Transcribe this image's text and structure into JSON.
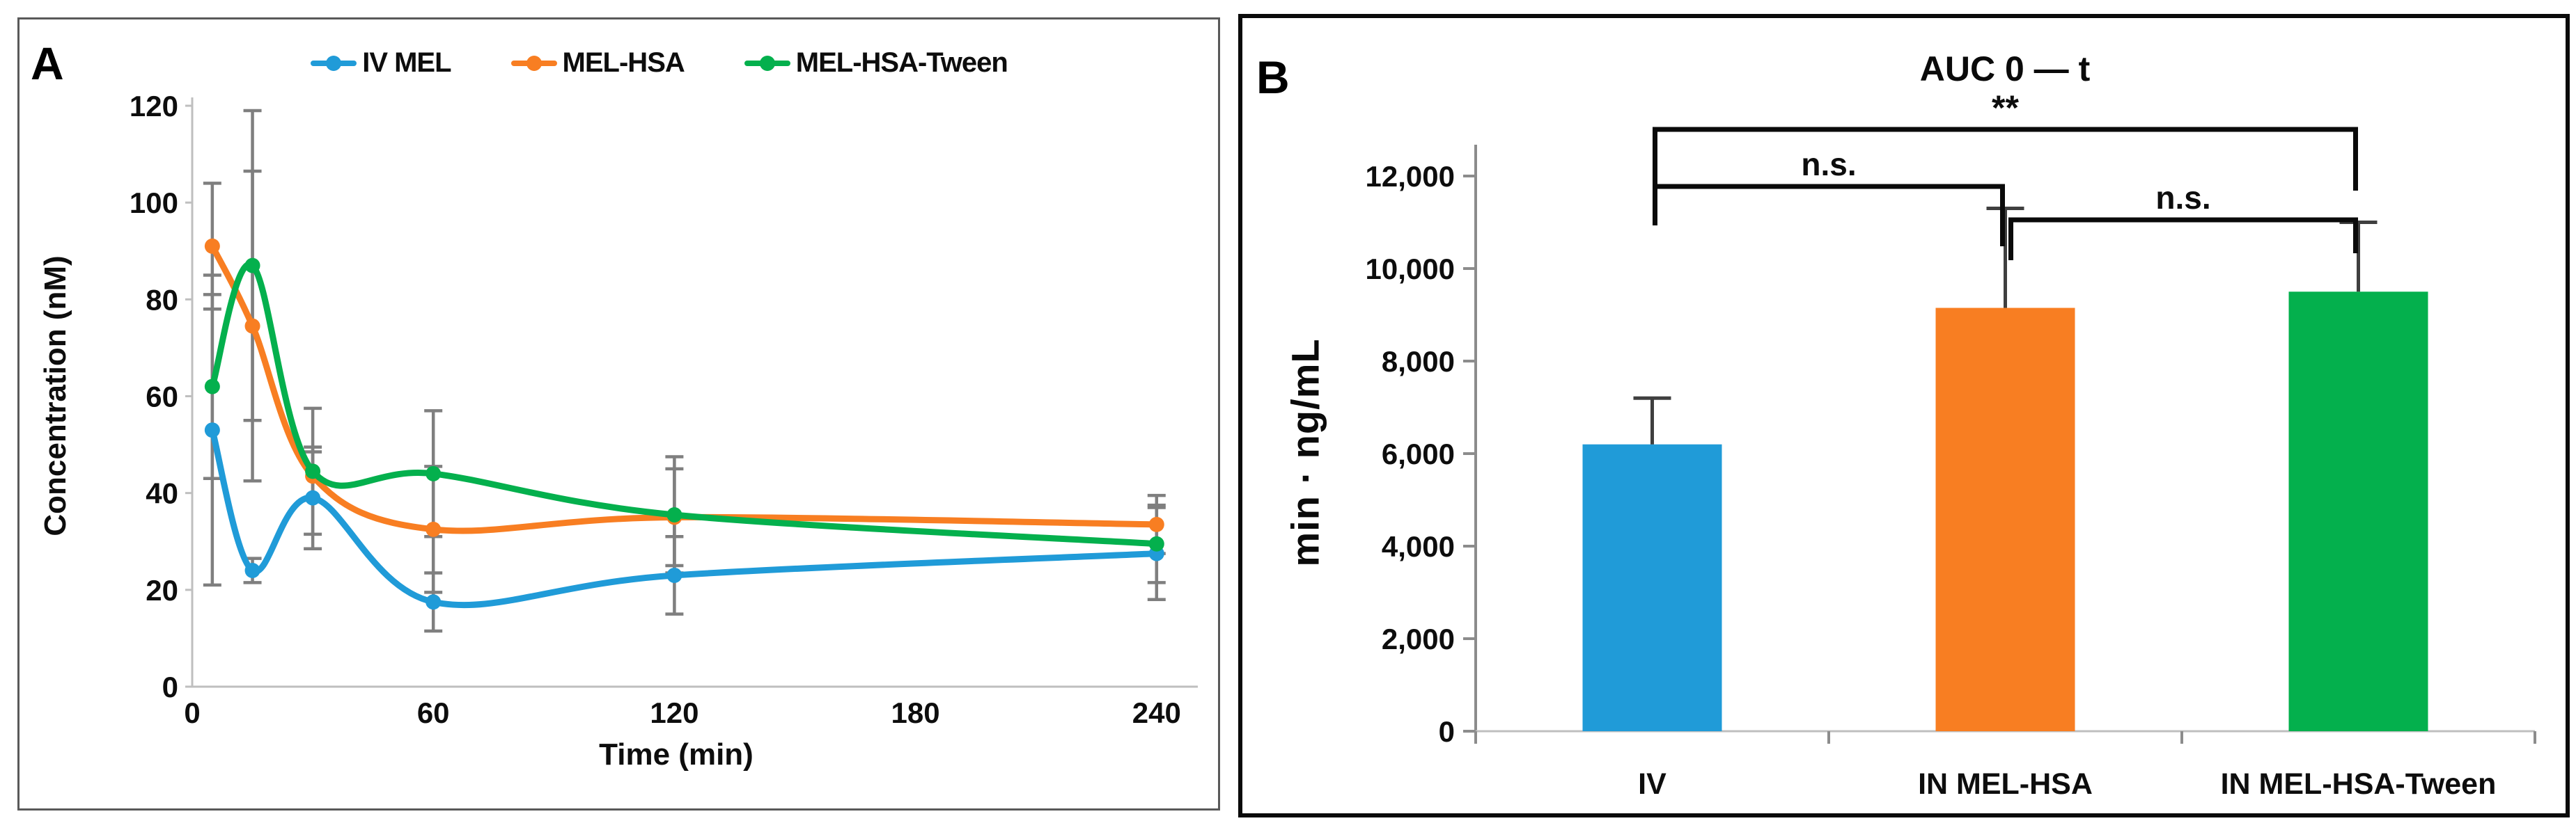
{
  "panels": {
    "a": {
      "letter": "A"
    },
    "b": {
      "letter": "B"
    }
  },
  "colors": {
    "blue": "#209BD8",
    "orange": "#F87E22",
    "green": "#04B04D",
    "error_gray_a": "#7F7F7F",
    "error_gray_b": "#3F3F3F",
    "axis_gray": "#BFBFBF",
    "axis_gray_dark": "#8C8C8C",
    "bracket_black": "#0A0A0A",
    "text_black": "#0D0D0D"
  },
  "chart_data": [
    {
      "type": "line",
      "panel": "A",
      "xlabel": "Time (min)",
      "ylabel": "Concentration (nM)",
      "x_ticks": [
        0,
        60,
        120,
        180,
        240
      ],
      "y_ticks": [
        0,
        20,
        40,
        60,
        80,
        100,
        120
      ],
      "ylim": [
        0,
        120
      ],
      "xlim": [
        0,
        250
      ],
      "x": [
        5,
        15,
        30,
        60,
        120,
        240
      ],
      "legend_position": "top-center",
      "grid": false,
      "series": [
        {
          "name": "IV MEL",
          "color": "#209BD8",
          "values": [
            53,
            24,
            39,
            17.5,
            23,
            27.5
          ],
          "errors": [
            32,
            2.5,
            10.5,
            6,
            8,
            9.5
          ]
        },
        {
          "name": "MEL-HSA",
          "color": "#F87E22",
          "values": [
            91,
            74.5,
            43.5,
            32.5,
            35,
            33.5
          ],
          "errors": [
            13,
            32,
            5,
            13,
            10,
            6
          ]
        },
        {
          "name": "MEL-HSA-Tween",
          "color": "#04B04D",
          "values": [
            62,
            87,
            44.5,
            44,
            35.5,
            29.5
          ],
          "errors": [
            19,
            32,
            13,
            13,
            12,
            8
          ]
        }
      ]
    },
    {
      "type": "bar",
      "panel": "B",
      "title": "AUC 0 — t",
      "ylabel": "min · ng/mL",
      "y_ticks": [
        "0",
        "2,000",
        "4,000",
        "6,000",
        "8,000",
        "10,000",
        "12,000"
      ],
      "y_tick_values": [
        0,
        2000,
        4000,
        6000,
        8000,
        10000,
        12000
      ],
      "ylim": [
        0,
        12000
      ],
      "grid": false,
      "categories": [
        "IV",
        "IN MEL-HSA",
        "IN MEL-HSA-Tween"
      ],
      "values": [
        6200,
        9150,
        9500
      ],
      "errors_up": [
        1000,
        2150,
        1500
      ],
      "colors": [
        "#209BD8",
        "#F87E22",
        "#04B04D"
      ],
      "brackets": [
        {
          "label": "**",
          "from": 0,
          "to": 2,
          "line_y": 160,
          "left_drop": 110,
          "right_drop": 88,
          "label_dy": -14
        },
        {
          "label": "n.s.",
          "from": 0,
          "to": 1,
          "line_y": 242,
          "left_drop": 56,
          "right_drop": 86,
          "label_dy": -16
        },
        {
          "label": "n.s.",
          "from": 1,
          "to": 2,
          "line_y": 290,
          "left_drop": 58,
          "right_drop": 48,
          "label_dy": -16
        }
      ]
    }
  ]
}
